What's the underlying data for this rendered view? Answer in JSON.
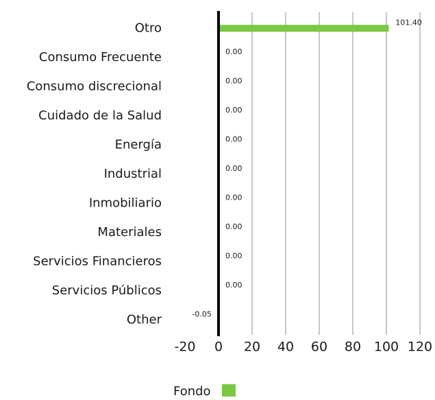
{
  "chart_data": {
    "type": "hbar",
    "categories": [
      "Otro",
      "Consumo Frecuente",
      "Consumo discrecional",
      "Cuidado de la Salud",
      "Energía",
      "Industrial",
      "Inmobiliario",
      "Materiales",
      "Servicios Financieros",
      "Servicios Públicos",
      "Other"
    ],
    "series": [
      {
        "name": "Fondo",
        "color": "#7ac943",
        "values": [
          101.4,
          0,
          0,
          0,
          0,
          0,
          0,
          0,
          0,
          0,
          -0.05
        ],
        "value_labels": [
          "101.40",
          "0.00",
          "0.00",
          "0.00",
          "0.00",
          "0.00",
          "0.00",
          "0.00",
          "0.00",
          "0.00",
          "-0.05"
        ]
      }
    ],
    "xlim": [
      -20,
      120
    ],
    "xticks": [
      -20,
      0,
      20,
      40,
      60,
      80,
      100,
      120
    ],
    "grid": true
  }
}
